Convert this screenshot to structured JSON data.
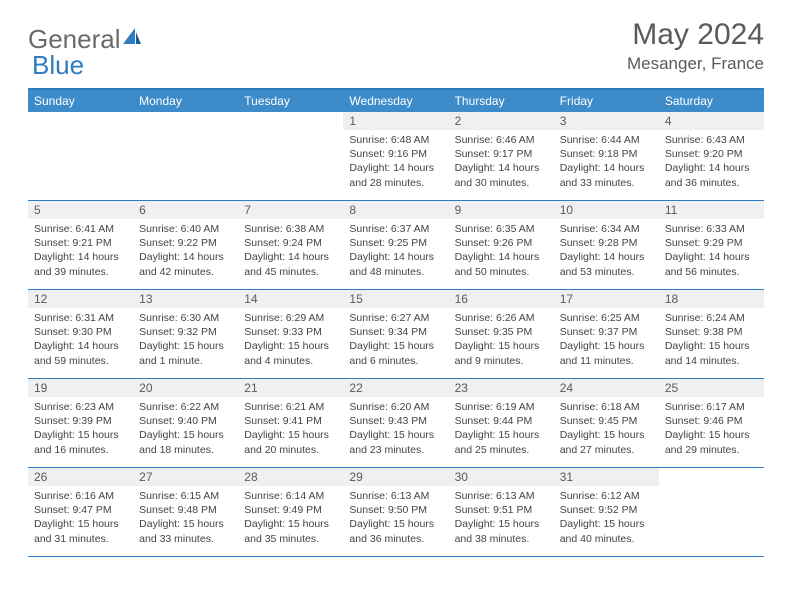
{
  "logo": {
    "text1": "General",
    "text2": "Blue"
  },
  "title": "May 2024",
  "location": "Mesanger, France",
  "colors": {
    "header_bar": "#3d8bc9",
    "border": "#2e7bbf",
    "daynum_bg": "#eef0f2",
    "text": "#3a3a3a",
    "logo_gray": "#6a6a6a",
    "logo_blue": "#2e7bbf"
  },
  "weekdays": [
    "Sunday",
    "Monday",
    "Tuesday",
    "Wednesday",
    "Thursday",
    "Friday",
    "Saturday"
  ],
  "weeks": [
    [
      null,
      null,
      null,
      {
        "n": "1",
        "sr": "6:48 AM",
        "ss": "9:16 PM",
        "dl": "14 hours and 28 minutes."
      },
      {
        "n": "2",
        "sr": "6:46 AM",
        "ss": "9:17 PM",
        "dl": "14 hours and 30 minutes."
      },
      {
        "n": "3",
        "sr": "6:44 AM",
        "ss": "9:18 PM",
        "dl": "14 hours and 33 minutes."
      },
      {
        "n": "4",
        "sr": "6:43 AM",
        "ss": "9:20 PM",
        "dl": "14 hours and 36 minutes."
      }
    ],
    [
      {
        "n": "5",
        "sr": "6:41 AM",
        "ss": "9:21 PM",
        "dl": "14 hours and 39 minutes."
      },
      {
        "n": "6",
        "sr": "6:40 AM",
        "ss": "9:22 PM",
        "dl": "14 hours and 42 minutes."
      },
      {
        "n": "7",
        "sr": "6:38 AM",
        "ss": "9:24 PM",
        "dl": "14 hours and 45 minutes."
      },
      {
        "n": "8",
        "sr": "6:37 AM",
        "ss": "9:25 PM",
        "dl": "14 hours and 48 minutes."
      },
      {
        "n": "9",
        "sr": "6:35 AM",
        "ss": "9:26 PM",
        "dl": "14 hours and 50 minutes."
      },
      {
        "n": "10",
        "sr": "6:34 AM",
        "ss": "9:28 PM",
        "dl": "14 hours and 53 minutes."
      },
      {
        "n": "11",
        "sr": "6:33 AM",
        "ss": "9:29 PM",
        "dl": "14 hours and 56 minutes."
      }
    ],
    [
      {
        "n": "12",
        "sr": "6:31 AM",
        "ss": "9:30 PM",
        "dl": "14 hours and 59 minutes."
      },
      {
        "n": "13",
        "sr": "6:30 AM",
        "ss": "9:32 PM",
        "dl": "15 hours and 1 minute."
      },
      {
        "n": "14",
        "sr": "6:29 AM",
        "ss": "9:33 PM",
        "dl": "15 hours and 4 minutes."
      },
      {
        "n": "15",
        "sr": "6:27 AM",
        "ss": "9:34 PM",
        "dl": "15 hours and 6 minutes."
      },
      {
        "n": "16",
        "sr": "6:26 AM",
        "ss": "9:35 PM",
        "dl": "15 hours and 9 minutes."
      },
      {
        "n": "17",
        "sr": "6:25 AM",
        "ss": "9:37 PM",
        "dl": "15 hours and 11 minutes."
      },
      {
        "n": "18",
        "sr": "6:24 AM",
        "ss": "9:38 PM",
        "dl": "15 hours and 14 minutes."
      }
    ],
    [
      {
        "n": "19",
        "sr": "6:23 AM",
        "ss": "9:39 PM",
        "dl": "15 hours and 16 minutes."
      },
      {
        "n": "20",
        "sr": "6:22 AM",
        "ss": "9:40 PM",
        "dl": "15 hours and 18 minutes."
      },
      {
        "n": "21",
        "sr": "6:21 AM",
        "ss": "9:41 PM",
        "dl": "15 hours and 20 minutes."
      },
      {
        "n": "22",
        "sr": "6:20 AM",
        "ss": "9:43 PM",
        "dl": "15 hours and 23 minutes."
      },
      {
        "n": "23",
        "sr": "6:19 AM",
        "ss": "9:44 PM",
        "dl": "15 hours and 25 minutes."
      },
      {
        "n": "24",
        "sr": "6:18 AM",
        "ss": "9:45 PM",
        "dl": "15 hours and 27 minutes."
      },
      {
        "n": "25",
        "sr": "6:17 AM",
        "ss": "9:46 PM",
        "dl": "15 hours and 29 minutes."
      }
    ],
    [
      {
        "n": "26",
        "sr": "6:16 AM",
        "ss": "9:47 PM",
        "dl": "15 hours and 31 minutes."
      },
      {
        "n": "27",
        "sr": "6:15 AM",
        "ss": "9:48 PM",
        "dl": "15 hours and 33 minutes."
      },
      {
        "n": "28",
        "sr": "6:14 AM",
        "ss": "9:49 PM",
        "dl": "15 hours and 35 minutes."
      },
      {
        "n": "29",
        "sr": "6:13 AM",
        "ss": "9:50 PM",
        "dl": "15 hours and 36 minutes."
      },
      {
        "n": "30",
        "sr": "6:13 AM",
        "ss": "9:51 PM",
        "dl": "15 hours and 38 minutes."
      },
      {
        "n": "31",
        "sr": "6:12 AM",
        "ss": "9:52 PM",
        "dl": "15 hours and 40 minutes."
      },
      null
    ]
  ],
  "labels": {
    "sunrise": "Sunrise: ",
    "sunset": "Sunset: ",
    "daylight": "Daylight: "
  }
}
